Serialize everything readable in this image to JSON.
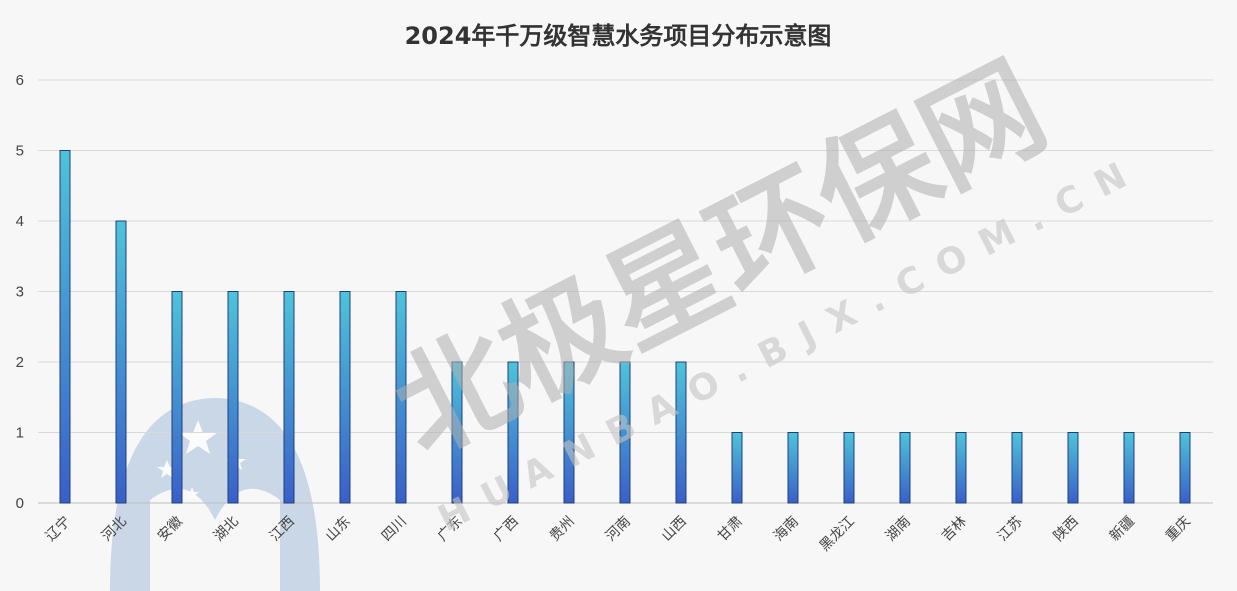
{
  "watermark": {
    "main": "北极星环保网",
    "sub": "HUANBAO.BJX.COM.CN",
    "logo_color": "#9fb8d8"
  },
  "colors": {
    "bar_top": "#4fc3d9",
    "bar_bottom": "#3a5fc8",
    "grid": "#d9d9d9"
  },
  "chart_data": {
    "type": "bar",
    "title": "2024年千万级智慧水务项目分布示意图",
    "xlabel": "",
    "ylabel": "",
    "ylim": [
      0,
      6
    ],
    "yticks": [
      0,
      1,
      2,
      3,
      4,
      5,
      6
    ],
    "grid": true,
    "categories": [
      "辽宁",
      "河北",
      "安徽",
      "湖北",
      "江西",
      "山东",
      "四川",
      "广东",
      "广西",
      "贵州",
      "河南",
      "山西",
      "甘肃",
      "海南",
      "黑龙江",
      "湖南",
      "吉林",
      "江苏",
      "陕西",
      "新疆",
      "重庆"
    ],
    "values": [
      5,
      4,
      3,
      3,
      3,
      3,
      3,
      2,
      2,
      2,
      2,
      2,
      1,
      1,
      1,
      1,
      1,
      1,
      1,
      1,
      1
    ]
  }
}
